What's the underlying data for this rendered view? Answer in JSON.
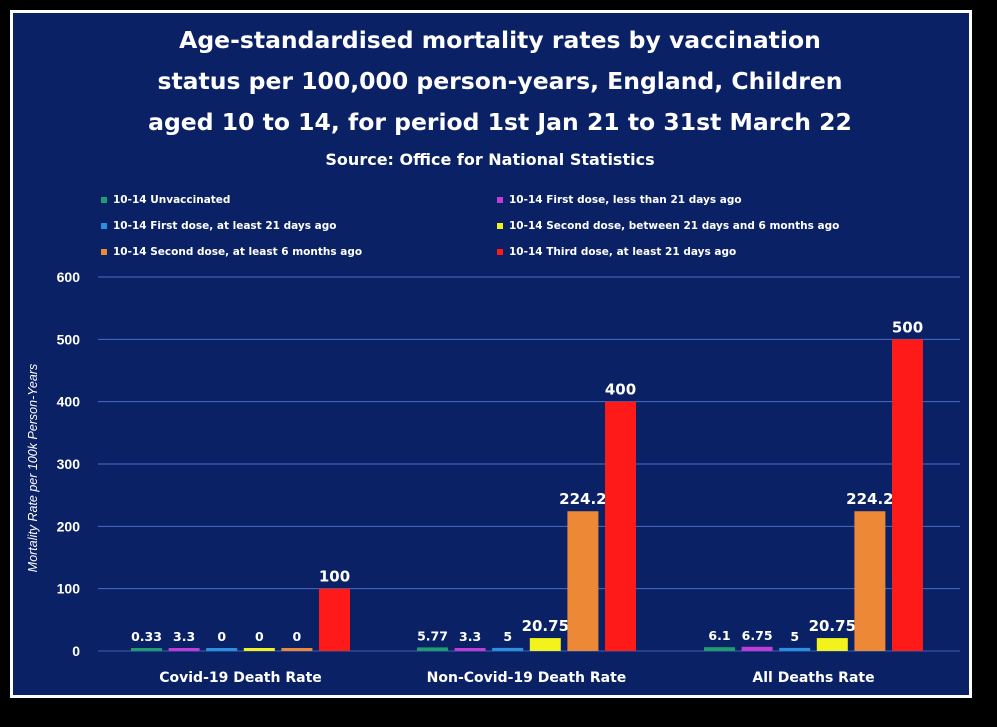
{
  "chart_data": {
    "type": "bar",
    "title_lines": [
      "Age-standardised mortality rates by vaccination",
      "status per 100,000 person-years, England, Children",
      "aged 10 to 14, for period 1st Jan 21 to 31st March 22"
    ],
    "subtitle": "Source: Office for National Statistics",
    "xlabel": "",
    "ylabel": "Mortality Rate per 100k Person-Years",
    "ylim": [
      0,
      600
    ],
    "yticks": [
      0,
      100,
      200,
      300,
      400,
      500,
      600
    ],
    "grid": true,
    "legend_position": "top",
    "categories": [
      "Covid-19 Death Rate",
      "Non-Covid-19 Death Rate",
      "All Deaths Rate"
    ],
    "series": [
      {
        "name": "10-14 Unvaccinated",
        "color": "#1e9e6e",
        "values": [
          0.33,
          5.77,
          6.1
        ],
        "labels": [
          "0.33",
          "5.77",
          "6.1"
        ]
      },
      {
        "name": "10-14 First dose, less than 21 days ago",
        "color": "#c23bd8",
        "values": [
          3.3,
          3.3,
          6.75
        ],
        "labels": [
          "3.3",
          "3.3",
          "6.75"
        ]
      },
      {
        "name": "10-14 First dose, at least 21 days ago",
        "color": "#2a8fe0",
        "values": [
          0,
          5,
          5
        ],
        "labels": [
          "0",
          "5",
          "5"
        ]
      },
      {
        "name": "10-14 Second dose, between 21 days and 6 months ago",
        "color": "#f2f21c",
        "values": [
          0,
          20.75,
          20.75
        ],
        "labels": [
          "0",
          "20.75",
          "20.75"
        ]
      },
      {
        "name": "10-14 Second dose, at least 6 months ago",
        "color": "#ec8836",
        "values": [
          0,
          224.2,
          224.2
        ],
        "labels": [
          "0",
          "224.2",
          "224.2"
        ]
      },
      {
        "name": "10-14 Third dose, at least 21 days ago",
        "color": "#ff1a1a",
        "values": [
          100,
          400,
          500
        ],
        "labels": [
          "100",
          "400",
          "500"
        ]
      }
    ]
  }
}
